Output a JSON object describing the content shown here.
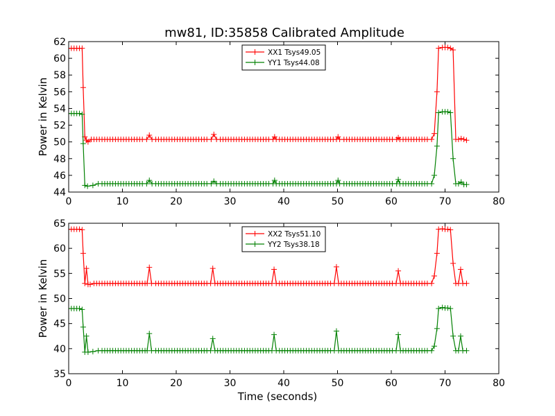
{
  "figure": {
    "title": "mw81, ID:35858 Calibrated Amplitude"
  },
  "chart_data": [
    {
      "type": "line",
      "title": "mw81, ID:35858 Calibrated Amplitude",
      "xlabel": "",
      "ylabel": "Power in Kelvin",
      "xlim": [
        0,
        80
      ],
      "ylim": [
        44,
        62
      ],
      "xticks": [
        0,
        10,
        20,
        30,
        40,
        50,
        60,
        70,
        80
      ],
      "yticks": [
        44,
        46,
        48,
        50,
        52,
        54,
        56,
        58,
        60,
        62
      ],
      "legend_position": "top-center",
      "series": [
        {
          "name": "XX1 Tsys49.05",
          "color": "#ff0000",
          "marker": "plus",
          "baseline": 50.3,
          "step_start": 2.7,
          "step_end": 72.0,
          "points": [
            [
              0.0,
              61.2
            ],
            [
              0.5,
              61.2
            ],
            [
              1.0,
              61.2
            ],
            [
              1.5,
              61.2
            ],
            [
              2.0,
              61.2
            ],
            [
              2.5,
              61.2
            ],
            [
              2.7,
              56.5
            ],
            [
              3.0,
              50.6
            ],
            [
              3.3,
              50.2
            ],
            [
              3.6,
              50.0
            ],
            [
              14.5,
              50.3
            ],
            [
              15.0,
              50.8
            ],
            [
              15.5,
              50.3
            ],
            [
              26.5,
              50.3
            ],
            [
              27.0,
              50.9
            ],
            [
              27.5,
              50.3
            ],
            [
              38.0,
              50.3
            ],
            [
              38.3,
              50.6
            ],
            [
              38.6,
              50.3
            ],
            [
              49.8,
              50.3
            ],
            [
              50.1,
              50.6
            ],
            [
              50.4,
              50.3
            ],
            [
              61.0,
              50.3
            ],
            [
              61.3,
              50.5
            ],
            [
              61.6,
              50.3
            ],
            [
              67.5,
              50.3
            ],
            [
              68.0,
              51.0
            ],
            [
              68.5,
              56.0
            ],
            [
              68.8,
              61.2
            ],
            [
              69.5,
              61.3
            ],
            [
              70.0,
              61.3
            ],
            [
              70.5,
              61.3
            ],
            [
              71.0,
              61.2
            ],
            [
              71.5,
              61.0
            ],
            [
              72.0,
              50.3
            ],
            [
              72.5,
              50.3
            ],
            [
              73.0,
              50.4
            ],
            [
              73.5,
              50.3
            ],
            [
              74.0,
              50.2
            ]
          ]
        },
        {
          "name": "YY1 Tsys44.08",
          "color": "#008000",
          "marker": "plus",
          "baseline": 45.0,
          "step_start": 2.7,
          "step_end": 72.0,
          "points": [
            [
              0.0,
              53.4
            ],
            [
              0.5,
              53.4
            ],
            [
              1.0,
              53.4
            ],
            [
              1.5,
              53.4
            ],
            [
              2.0,
              53.4
            ],
            [
              2.5,
              53.3
            ],
            [
              2.7,
              49.8
            ],
            [
              3.0,
              44.8
            ],
            [
              3.5,
              44.7
            ],
            [
              4.5,
              44.8
            ],
            [
              5.5,
              45.0
            ],
            [
              14.5,
              45.0
            ],
            [
              15.0,
              45.4
            ],
            [
              15.5,
              45.0
            ],
            [
              26.5,
              45.0
            ],
            [
              27.0,
              45.3
            ],
            [
              27.5,
              45.0
            ],
            [
              38.0,
              45.0
            ],
            [
              38.3,
              45.4
            ],
            [
              38.6,
              45.0
            ],
            [
              49.8,
              45.0
            ],
            [
              50.1,
              45.4
            ],
            [
              50.4,
              45.0
            ],
            [
              61.0,
              45.0
            ],
            [
              61.3,
              45.5
            ],
            [
              61.6,
              45.0
            ],
            [
              67.5,
              45.0
            ],
            [
              68.0,
              46.0
            ],
            [
              68.5,
              49.5
            ],
            [
              68.8,
              53.5
            ],
            [
              69.5,
              53.6
            ],
            [
              70.0,
              53.6
            ],
            [
              70.5,
              53.6
            ],
            [
              71.0,
              53.5
            ],
            [
              71.5,
              48.0
            ],
            [
              72.0,
              45.0
            ],
            [
              72.5,
              45.0
            ],
            [
              73.0,
              45.2
            ],
            [
              73.5,
              44.9
            ],
            [
              74.0,
              44.9
            ]
          ]
        }
      ]
    },
    {
      "type": "line",
      "title": "",
      "xlabel": "Time (seconds)",
      "ylabel": "Power in Kelvin",
      "xlim": [
        0,
        80
      ],
      "ylim": [
        35,
        65
      ],
      "xticks": [
        0,
        10,
        20,
        30,
        40,
        50,
        60,
        70,
        80
      ],
      "yticks": [
        35,
        40,
        45,
        50,
        55,
        60,
        65
      ],
      "legend_position": "top-center",
      "series": [
        {
          "name": "XX2 Tsys51.10",
          "color": "#ff0000",
          "marker": "plus",
          "baseline": 53.0,
          "step_start": 2.7,
          "step_end": 72.0,
          "points": [
            [
              0.0,
              63.8
            ],
            [
              0.5,
              63.8
            ],
            [
              1.0,
              63.8
            ],
            [
              1.5,
              63.8
            ],
            [
              2.0,
              63.8
            ],
            [
              2.5,
              63.7
            ],
            [
              2.7,
              59.0
            ],
            [
              3.0,
              53.0
            ],
            [
              3.3,
              56.0
            ],
            [
              3.6,
              52.8
            ],
            [
              4.0,
              52.8
            ],
            [
              14.6,
              53.0
            ],
            [
              15.0,
              56.2
            ],
            [
              15.4,
              53.0
            ],
            [
              26.4,
              53.0
            ],
            [
              26.8,
              56.0
            ],
            [
              27.2,
              53.0
            ],
            [
              37.8,
              53.0
            ],
            [
              38.2,
              55.8
            ],
            [
              38.6,
              53.0
            ],
            [
              49.4,
              53.0
            ],
            [
              49.8,
              56.3
            ],
            [
              50.2,
              53.0
            ],
            [
              60.9,
              53.0
            ],
            [
              61.3,
              55.5
            ],
            [
              61.7,
              53.0
            ],
            [
              67.5,
              53.0
            ],
            [
              68.0,
              54.5
            ],
            [
              68.5,
              59.0
            ],
            [
              68.8,
              63.8
            ],
            [
              69.5,
              63.9
            ],
            [
              70.0,
              63.8
            ],
            [
              70.5,
              63.8
            ],
            [
              71.0,
              63.7
            ],
            [
              71.5,
              57.0
            ],
            [
              72.0,
              53.0
            ],
            [
              72.5,
              53.0
            ],
            [
              72.9,
              55.8
            ],
            [
              73.3,
              53.0
            ],
            [
              74.0,
              53.0
            ]
          ]
        },
        {
          "name": "YY2 Tsys38.18",
          "color": "#008000",
          "marker": "plus",
          "baseline": 39.6,
          "step_start": 2.7,
          "step_end": 72.0,
          "points": [
            [
              0.0,
              48.0
            ],
            [
              0.5,
              48.0
            ],
            [
              1.0,
              48.0
            ],
            [
              1.5,
              48.0
            ],
            [
              2.0,
              48.0
            ],
            [
              2.5,
              47.8
            ],
            [
              2.7,
              44.3
            ],
            [
              3.0,
              39.3
            ],
            [
              3.3,
              42.5
            ],
            [
              3.6,
              39.3
            ],
            [
              4.5,
              39.4
            ],
            [
              5.5,
              39.6
            ],
            [
              14.6,
              39.6
            ],
            [
              15.0,
              43.0
            ],
            [
              15.4,
              39.6
            ],
            [
              26.4,
              39.6
            ],
            [
              26.8,
              42.0
            ],
            [
              27.2,
              39.6
            ],
            [
              37.8,
              39.6
            ],
            [
              38.2,
              42.8
            ],
            [
              38.6,
              39.6
            ],
            [
              49.4,
              39.6
            ],
            [
              49.8,
              43.5
            ],
            [
              50.2,
              39.6
            ],
            [
              60.9,
              39.6
            ],
            [
              61.3,
              42.8
            ],
            [
              61.7,
              39.6
            ],
            [
              67.5,
              39.6
            ],
            [
              68.0,
              40.5
            ],
            [
              68.5,
              44.0
            ],
            [
              68.8,
              48.0
            ],
            [
              69.5,
              48.2
            ],
            [
              70.0,
              48.1
            ],
            [
              70.5,
              48.1
            ],
            [
              71.0,
              48.0
            ],
            [
              71.5,
              42.5
            ],
            [
              72.0,
              39.6
            ],
            [
              72.5,
              39.6
            ],
            [
              72.9,
              42.5
            ],
            [
              73.3,
              39.6
            ],
            [
              74.0,
              39.6
            ]
          ]
        }
      ]
    }
  ]
}
